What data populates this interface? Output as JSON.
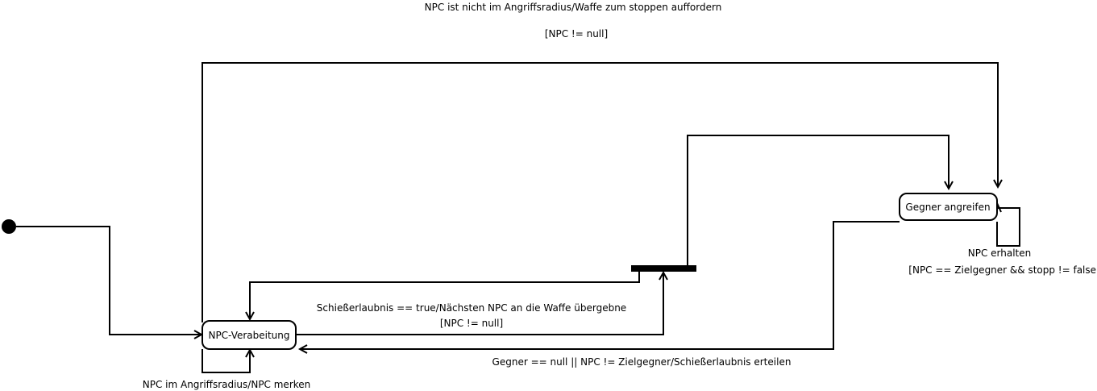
{
  "diagram": {
    "states": {
      "npc_processing": "NPC-Verabeitung",
      "attack_enemy": "Gegner angreifen"
    },
    "transitions": {
      "not_in_radius_event": "NPC ist nicht im Angriffsradius/Waffe zum stoppen auffordern",
      "not_in_radius_guard": "[NPC != null]",
      "permission_event": "Schießerlaubnis == true/Nächsten NPC an die Waffe übergebne",
      "permission_guard": "[NPC != null]",
      "enemy_null_event": "Gegner == null || NPC != Zielgegner/Schießerlaubnis erteilen",
      "in_radius_event": "NPC im Angriffsradius/NPC merken",
      "keep_npc_event": "NPC erhalten",
      "keep_npc_guard": "[NPC == Zielgegner && stopp != false]"
    }
  }
}
